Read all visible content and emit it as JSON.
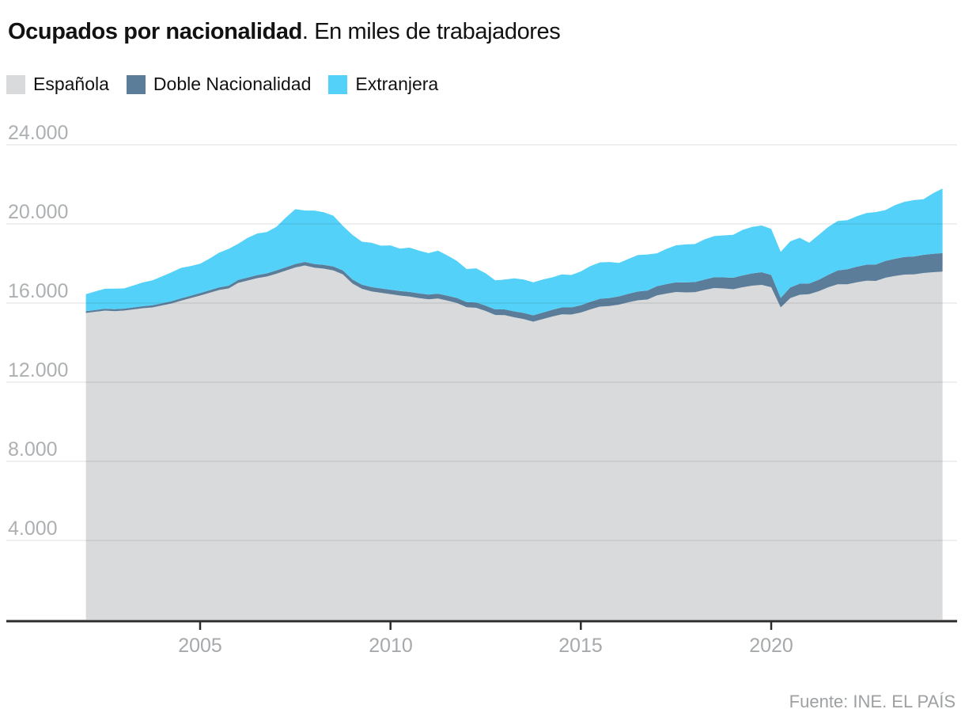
{
  "title": {
    "bold": "Ocupados por nacionalidad",
    "regular": ". En miles de trabajadores"
  },
  "legend": {
    "items": [
      {
        "label": "Española",
        "color": "#d8dadc"
      },
      {
        "label": "Doble Nacionalidad",
        "color": "#5c7d9a"
      },
      {
        "label": "Extranjera",
        "color": "#53d1f8"
      }
    ]
  },
  "source": "Fuente: INE. EL PAÍS",
  "chart_data": {
    "type": "area",
    "stacked": true,
    "title": "Ocupados por nacionalidad",
    "subtitle": "En miles de trabajadores",
    "unit": "miles de trabajadores",
    "grid": true,
    "legend_position": "top",
    "x": {
      "start_year": 2002,
      "start_quarter": 1,
      "step": "trimestre",
      "count": 91,
      "end": "2024-T3"
    },
    "x_domain_years": [
      2002.0,
      2024.5
    ],
    "ylim": [
      0,
      24000
    ],
    "y_ticks": {
      "values": [
        24000,
        20000,
        16000,
        12000,
        8000,
        4000
      ],
      "labels": [
        "24.000",
        "20.000",
        "16.000",
        "12.000",
        "8.000",
        "4.000"
      ]
    },
    "x_ticks": {
      "values": [
        2005,
        2010,
        2015,
        2020
      ],
      "labels": [
        "2005",
        "2010",
        "2015",
        "2020"
      ]
    },
    "series": [
      {
        "name": "Española",
        "color": "#d8dadc",
        "values": [
          15500,
          15560,
          15620,
          15590,
          15620,
          15680,
          15740,
          15780,
          15880,
          15980,
          16120,
          16250,
          16380,
          16520,
          16660,
          16740,
          17020,
          17140,
          17260,
          17340,
          17480,
          17640,
          17800,
          17900,
          17790,
          17740,
          17650,
          17450,
          16990,
          16720,
          16590,
          16520,
          16450,
          16380,
          16330,
          16250,
          16190,
          16230,
          16120,
          16000,
          15790,
          15760,
          15600,
          15400,
          15390,
          15280,
          15190,
          15060,
          15190,
          15320,
          15430,
          15420,
          15520,
          15680,
          15820,
          15850,
          15920,
          16040,
          16140,
          16180,
          16390,
          16480,
          16560,
          16540,
          16550,
          16660,
          16760,
          16740,
          16700,
          16800,
          16880,
          16920,
          16800,
          15780,
          16250,
          16420,
          16450,
          16600,
          16800,
          16950,
          16950,
          17050,
          17130,
          17120,
          17280,
          17370,
          17440,
          17450,
          17520,
          17560,
          17590
        ]
      },
      {
        "name": "Doble Nacionalidad",
        "color": "#5c7d9a",
        "values": [
          90,
          92,
          94,
          96,
          98,
          100,
          103,
          106,
          110,
          114,
          118,
          122,
          126,
          131,
          136,
          141,
          146,
          151,
          156,
          161,
          166,
          171,
          176,
          181,
          186,
          191,
          196,
          201,
          206,
          211,
          216,
          221,
          226,
          230,
          234,
          238,
          242,
          246,
          250,
          255,
          260,
          266,
          272,
          280,
          290,
          300,
          310,
          320,
          330,
          340,
          350,
          360,
          370,
          382,
          394,
          406,
          418,
          430,
          442,
          454,
          466,
          478,
          490,
          502,
          515,
          530,
          545,
          560,
          580,
          600,
          620,
          640,
          620,
          480,
          540,
          560,
          540,
          580,
          630,
          700,
          760,
          790,
          810,
          830,
          850,
          870,
          890,
          905,
          920,
          928,
          932
        ]
      },
      {
        "name": "Extranjera",
        "color": "#53d1f8",
        "values": [
          860,
          940,
          1010,
          1040,
          1020,
          1110,
          1200,
          1260,
          1360,
          1460,
          1540,
          1500,
          1480,
          1600,
          1750,
          1860,
          1830,
          2010,
          2100,
          2090,
          2200,
          2510,
          2770,
          2600,
          2700,
          2660,
          2570,
          2250,
          2250,
          2170,
          2240,
          2160,
          2240,
          2140,
          2240,
          2160,
          2090,
          2170,
          2030,
          1870,
          1670,
          1730,
          1630,
          1470,
          1510,
          1670,
          1690,
          1670,
          1670,
          1640,
          1670,
          1640,
          1710,
          1810,
          1840,
          1820,
          1690,
          1760,
          1850,
          1820,
          1660,
          1780,
          1870,
          1920,
          1920,
          2030,
          2080,
          2120,
          2170,
          2300,
          2350,
          2360,
          2330,
          2330,
          2330,
          2320,
          2060,
          2270,
          2420,
          2500,
          2480,
          2550,
          2610,
          2650,
          2570,
          2710,
          2790,
          2850,
          2810,
          3060,
          3270
        ]
      }
    ]
  }
}
